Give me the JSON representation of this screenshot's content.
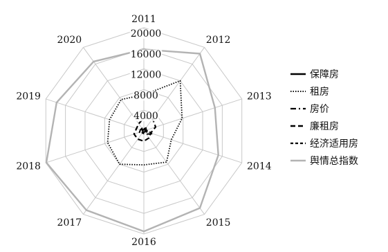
{
  "chart_data": {
    "type": "radar",
    "categories": [
      "2011",
      "2012",
      "2013",
      "2014",
      "2015",
      "2016",
      "2017",
      "2018",
      "2019",
      "2020"
    ],
    "r_ticks": [
      4000,
      8000,
      12000,
      16000,
      20000
    ],
    "r_max": 20000,
    "grid": true,
    "legend_position": "right",
    "series": [
      {
        "name": "保障房",
        "color": "#000000",
        "style": "solid",
        "values": [
          200,
          300,
          350,
          300,
          250,
          250,
          250,
          250,
          250,
          300
        ]
      },
      {
        "name": "租房",
        "color": "#000000",
        "style": "dotted",
        "values": [
          7000,
          12000,
          7800,
          5600,
          7500,
          6600,
          8000,
          7400,
          7000,
          7500
        ]
      },
      {
        "name": "房价",
        "color": "#000000",
        "style": "dashdot",
        "values": [
          300,
          700,
          500,
          1800,
          800,
          500,
          600,
          900,
          700,
          600
        ]
      },
      {
        "name": "廉租房",
        "color": "#000000",
        "style": "dashed",
        "values": [
          2500,
          2900,
          2400,
          1400,
          1700,
          2000,
          2000,
          2000,
          1500,
          1700
        ]
      },
      {
        "name": "经济适用房",
        "color": "#000000",
        "style": "shortdash",
        "values": [
          400,
          700,
          700,
          600,
          500,
          500,
          500,
          500,
          500,
          600
        ]
      },
      {
        "name": "舆情总指数",
        "color": "#b3b3b3",
        "style": "solid",
        "values": [
          15800,
          18500,
          14500,
          15200,
          18500,
          19500,
          19000,
          19900,
          17800,
          16600
        ]
      }
    ]
  }
}
